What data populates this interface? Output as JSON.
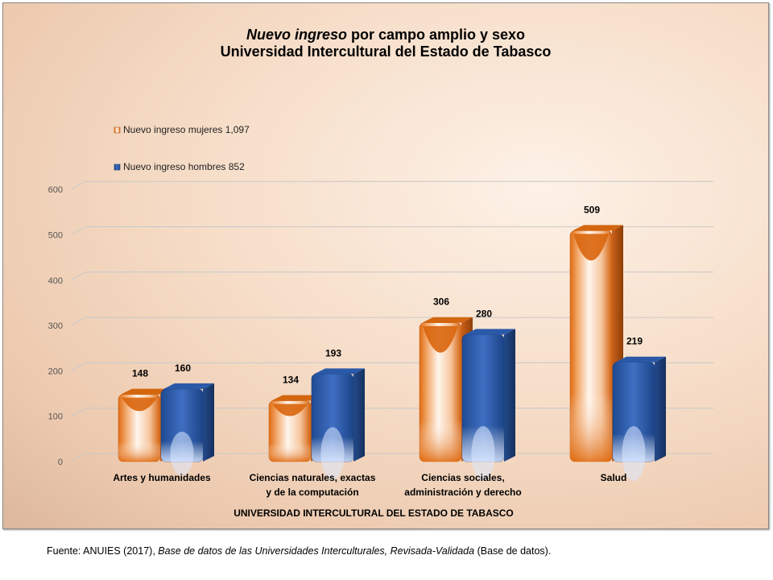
{
  "chart_data": {
    "type": "bar",
    "title_italic": "Nuevo ingreso",
    "title_rest": " por campo amplio y sexo",
    "subtitle": "Universidad Intercultural del Estado de Tabasco",
    "xlabel": "UNIVERSIDAD INTERCULTURAL DEL ESTADO DE TABASCO",
    "ylabel": "",
    "ylim": [
      0,
      600
    ],
    "yticks": [
      0,
      100,
      200,
      300,
      400,
      500,
      600
    ],
    "grid": true,
    "legend_position": "top-left",
    "categories": [
      [
        "Artes y humanidades"
      ],
      [
        "Ciencias naturales, exactas",
        "y de la computación"
      ],
      [
        "Ciencias sociales,",
        "administración y derecho"
      ],
      [
        "Salud"
      ]
    ],
    "series": [
      {
        "name": "Nuevo ingreso mujeres  1,097",
        "values": [
          148,
          134,
          306,
          509
        ],
        "color": "#e0701e"
      },
      {
        "name": "Nuevo ingreso hombres  852",
        "values": [
          160,
          193,
          280,
          219
        ],
        "color": "#2e5aa6"
      }
    ]
  },
  "source": {
    "prefix": "Fuente: ANUIES (2017), ",
    "italic": "Base de datos de las Universidades  Interculturales, Revisada-Validada",
    "suffix": "  (Base de datos)."
  }
}
